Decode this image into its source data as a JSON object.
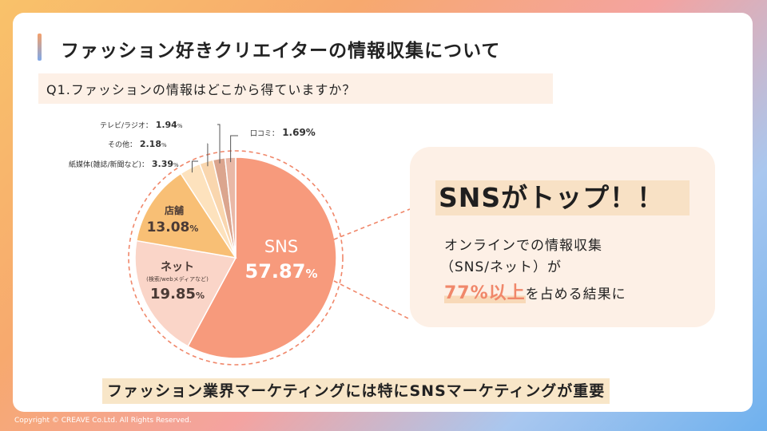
{
  "title": "ファッション好きクリエイターの情報収集について",
  "question": "Q1.ファッションの情報はどこから得ていますか？",
  "chart_data": {
    "type": "pie",
    "unit": "%",
    "slices": [
      {
        "key": "sns",
        "label": "SNS",
        "sublabel": "",
        "value": 57.87,
        "display": "57.87",
        "color": "#f79a7c"
      },
      {
        "key": "net",
        "label": "ネット",
        "sublabel": "(検索/webメディアなど)",
        "value": 19.85,
        "display": "19.85",
        "color": "#fad5c8"
      },
      {
        "key": "store",
        "label": "店舗",
        "sublabel": "",
        "value": 13.08,
        "display": "13.08",
        "color": "#f8bf75"
      },
      {
        "key": "print",
        "label": "紙媒体(雑誌/新聞など)：",
        "sublabel": "",
        "value": 3.39,
        "display": "3.39",
        "color": "#fde2bd"
      },
      {
        "key": "other",
        "label": "その他：",
        "sublabel": "",
        "value": 2.18,
        "display": "2.18",
        "color": "#f9d6ae"
      },
      {
        "key": "tv",
        "label": "テレビ/ラジオ：",
        "sublabel": "",
        "value": 1.94,
        "display": "1.94",
        "color": "#dba58e"
      },
      {
        "key": "wom",
        "label": "口コミ：",
        "sublabel": "",
        "value": 1.69,
        "display": "1.69",
        "color": "#e9b8a6"
      }
    ]
  },
  "callout": {
    "headline": "SNSがトップ！！",
    "line1": "オンラインでの情報収集",
    "line2": "（SNS/ネット）が",
    "highlight": "77%以上",
    "line3_rest": "を占める結果に"
  },
  "footer_message": "ファッション業界マーケティングには特にSNSマーケティングが重要",
  "copyright": "Copyright © CREAVE Co.Ltd. All Rights Reserved."
}
